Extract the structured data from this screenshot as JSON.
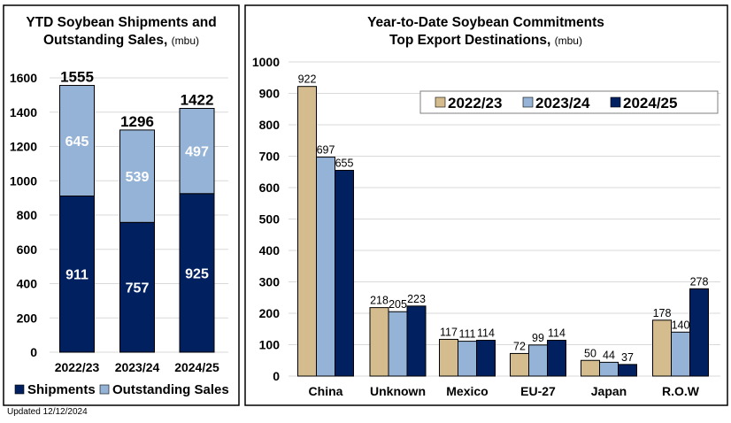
{
  "chart_data": [
    {
      "type": "bar",
      "stacked": true,
      "title": "YTD Soybean Shipments and Outstanding Sales,",
      "title_line1": "YTD Soybean Shipments and",
      "title_line2": "Outstanding Sales,",
      "unit": "(mbu)",
      "categories": [
        "2022/23",
        "2023/24",
        "2024/25"
      ],
      "series": [
        {
          "name": "Shipments",
          "values": [
            911,
            757,
            925
          ],
          "color": "#002060"
        },
        {
          "name": "Outstanding Sales",
          "values": [
            645,
            539,
            497
          ],
          "color": "#95B3D7"
        }
      ],
      "totals": [
        1555,
        1296,
        1422
      ],
      "yticks": [
        0,
        200,
        400,
        600,
        800,
        1000,
        1200,
        1400,
        1600
      ],
      "ylim": [
        0,
        1600
      ],
      "grid": true,
      "legend_position": "bottom"
    },
    {
      "type": "bar",
      "title_line1": "Year-to-Date Soybean Commitments",
      "title_line2": "Top Export Destinations,",
      "unit": "(mbu)",
      "categories": [
        "China",
        "Unknown",
        "Mexico",
        "EU-27",
        "Japan",
        "R.O.W"
      ],
      "series": [
        {
          "name": "2022/23",
          "values": [
            922,
            218,
            117,
            72,
            50,
            178
          ],
          "color": "#D5BC8E"
        },
        {
          "name": "2023/24",
          "values": [
            697,
            205,
            111,
            99,
            44,
            140
          ],
          "color": "#95B3D7"
        },
        {
          "name": "2024/25",
          "values": [
            655,
            223,
            114,
            114,
            37,
            278
          ],
          "color": "#002060"
        }
      ],
      "yticks": [
        0,
        100,
        200,
        300,
        400,
        500,
        600,
        700,
        800,
        900,
        1000
      ],
      "ylim": [
        0,
        1000
      ],
      "grid": true,
      "legend_position": "top-right"
    }
  ],
  "footer": "Updated 12/12/2024"
}
